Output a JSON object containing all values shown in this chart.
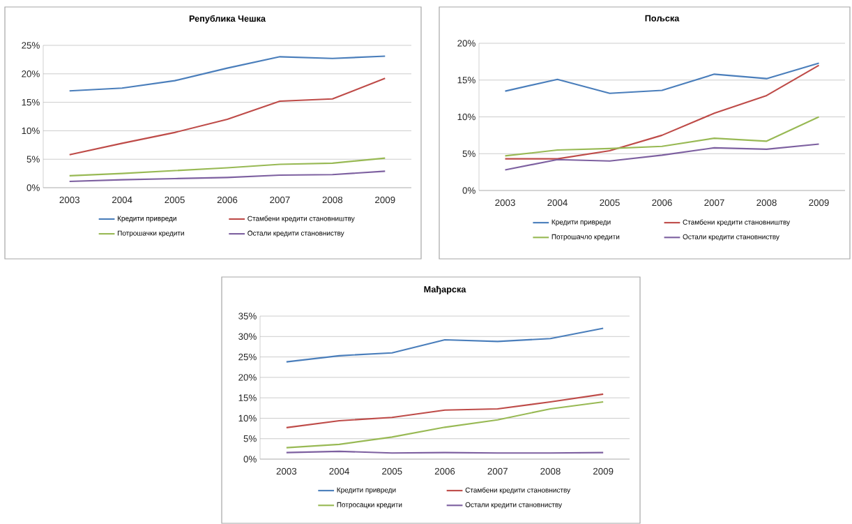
{
  "chart_data": [
    {
      "type": "line",
      "title": "Република Чешка",
      "categories": [
        "2003",
        "2004",
        "2005",
        "2006",
        "2007",
        "2008",
        "2009"
      ],
      "series": [
        {
          "name": "Кредити привреди",
          "color": "#4a7ebb",
          "values": [
            17,
            17.5,
            18.8,
            21,
            23,
            22.7,
            23.1
          ]
        },
        {
          "name": "Стамбени кредити становништву",
          "color": "#be4b48",
          "values": [
            5.8,
            7.8,
            9.7,
            12,
            15.2,
            15.6,
            19.2
          ]
        },
        {
          "name": "Потрошачки кредити",
          "color": "#98b954",
          "values": [
            2.1,
            2.5,
            3,
            3.5,
            4.1,
            4.3,
            5.2
          ]
        },
        {
          "name": "Остали кредити становниству",
          "color": "#7d60a0",
          "values": [
            1.1,
            1.4,
            1.6,
            1.8,
            2.2,
            2.3,
            2.9
          ]
        }
      ],
      "ylim": [
        0,
        25
      ],
      "yticks": [
        {
          "value": 0,
          "label": "0%"
        },
        {
          "value": 5,
          "label": "5%"
        },
        {
          "value": 10,
          "label": "10%"
        },
        {
          "value": 15,
          "label": "15%"
        },
        {
          "value": 20,
          "label": "20%"
        },
        {
          "value": 25,
          "label": "25%"
        }
      ],
      "grid": "y",
      "legend": "bottom",
      "line_style": "solid",
      "marker": "none"
    },
    {
      "type": "line",
      "title": "Пољска",
      "categories": [
        "2003",
        "2004",
        "2005",
        "2006",
        "2007",
        "2008",
        "2009"
      ],
      "series": [
        {
          "name": "Кредити привреди",
          "color": "#4a7ebb",
          "values": [
            13.5,
            15.1,
            13.2,
            13.6,
            15.8,
            15.2,
            17.3
          ]
        },
        {
          "name": "Стамбени кредити становништву",
          "color": "#be4b48",
          "values": [
            4.3,
            4.3,
            5.4,
            7.5,
            10.5,
            12.9,
            17
          ]
        },
        {
          "name": "Потрошачло кредити",
          "color": "#98b954",
          "values": [
            4.7,
            5.5,
            5.7,
            6,
            7.1,
            6.7,
            10
          ]
        },
        {
          "name": "Остали кредити становниству",
          "color": "#7d60a0",
          "values": [
            2.8,
            4.2,
            4,
            4.8,
            5.8,
            5.6,
            6.3
          ]
        }
      ],
      "ylim": [
        0,
        20
      ],
      "yticks": [
        {
          "value": 0,
          "label": "0%"
        },
        {
          "value": 5,
          "label": "5%"
        },
        {
          "value": 10,
          "label": "10%"
        },
        {
          "value": 15,
          "label": "15%"
        },
        {
          "value": 20,
          "label": "20%"
        }
      ],
      "grid": "y",
      "legend": "bottom",
      "line_style": "solid",
      "marker": "none"
    },
    {
      "type": "line",
      "title": "Мађарска",
      "categories": [
        "2003",
        "2004",
        "2005",
        "2006",
        "2007",
        "2008",
        "2009"
      ],
      "series": [
        {
          "name": "Кредити привреди",
          "color": "#4a7ebb",
          "values": [
            23.8,
            25.3,
            26,
            29.2,
            28.8,
            29.5,
            32
          ]
        },
        {
          "name": "Стамбени кредити становниству",
          "color": "#be4b48",
          "values": [
            7.7,
            9.4,
            10.2,
            12,
            12.3,
            14,
            15.9
          ]
        },
        {
          "name": "Потросацки кредити",
          "color": "#98b954",
          "values": [
            2.8,
            3.6,
            5.4,
            7.8,
            9.6,
            12.3,
            14
          ]
        },
        {
          "name": "Остали кредити становниству",
          "color": "#7d60a0",
          "values": [
            1.6,
            1.9,
            1.5,
            1.6,
            1.5,
            1.5,
            1.6
          ]
        }
      ],
      "ylim": [
        0,
        35
      ],
      "yticks": [
        {
          "value": 0,
          "label": "0%"
        },
        {
          "value": 5,
          "label": "5%"
        },
        {
          "value": 10,
          "label": "10%"
        },
        {
          "value": 15,
          "label": "15%"
        },
        {
          "value": 20,
          "label": "20%"
        },
        {
          "value": 25,
          "label": "25%"
        },
        {
          "value": 30,
          "label": "30%"
        },
        {
          "value": 35,
          "label": "35%"
        }
      ],
      "grid": "y",
      "legend": "bottom",
      "line_style": "solid",
      "marker": "none"
    }
  ]
}
